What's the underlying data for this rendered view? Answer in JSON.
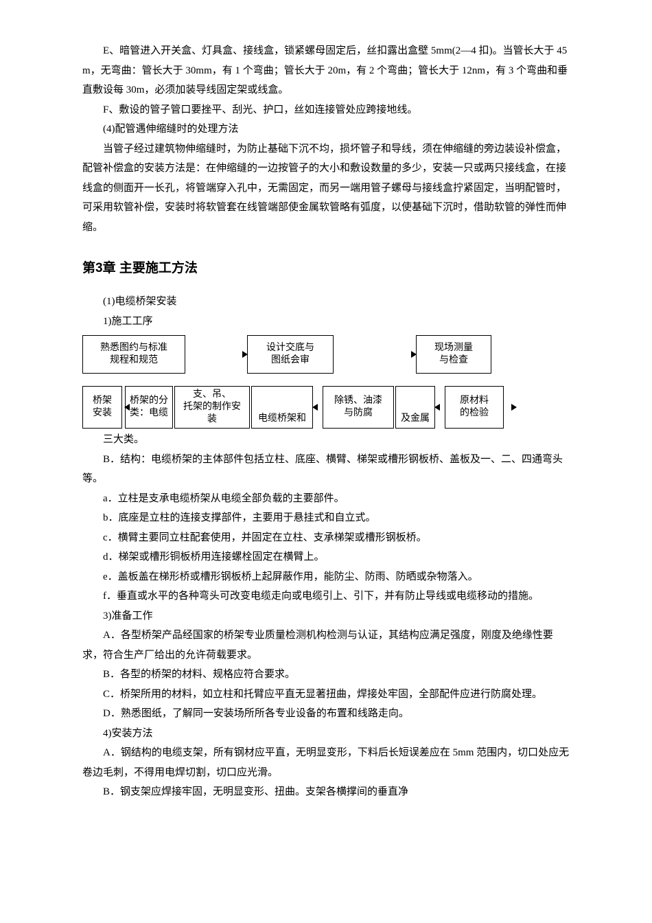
{
  "section_e": "E、暗管进入开关盒、灯具盒、接线盒，锁紧螺母固定后，丝扣露出盒壁 5mm(2―4 扣)。当管长大于 45 m，无弯曲：管长大于 30mm，有 1 个弯曲；管长大于 20m，有 2 个弯曲；管长大于 12nm，有 3 个弯曲和垂直敷设每 30m，必须加装导线固定架或线盒。",
  "section_f": "F、敷设的管子管口要挫平、刮光、护口，丝如连接管处应跨接地线。",
  "section_4_title": "(4)配管遇伸缩缝时的处理方法",
  "section_4_body": "当管子经过建筑物伸缩缝时，为防止基础下沉不均，损坏管子和导线，须在伸缩缝的旁边装设补偿盒，配管补偿盒的安装方法是：在伸缩缝的一边按管子的大小和敷设数量的多少，安装一只或两只接线盒，在接线盒的侧面开一长孔，将管端穿入孔中，无需固定，而另一端用管子螺母与接线盒拧紧固定，当明配管时，可采用软管补偿，安装时将软管套在线管端部使金属软管略有弧度，以使基础下沉时，借助软管的弹性而伸缩。",
  "chapter_heading": "第3章 主要施工方法",
  "s1_title": "(1)电缆桥架安装",
  "s1_1": "1)施工工序",
  "flow": {
    "row1": {
      "box1": "熟悉图约与标准\n规程和规范",
      "box2": "设计交底与\n图纸会审",
      "box3": "现场测量\n与检查",
      "box1_w": 150,
      "box2_w": 126,
      "box3_w": 110
    },
    "row2": {
      "box1": "桥架\n安装",
      "box2": "桥架的分\n类：电缆",
      "box3": "支、吊、\n托架的制作安\n装",
      "box4": "电缆桥架和",
      "box5": "除锈、油漆\n与防腐",
      "box6": "及金属",
      "box7": "原材料\n的检验",
      "w1": 58,
      "w2": 70,
      "w3": 110,
      "w4": 90,
      "w5": 104,
      "w6": 58,
      "w7": 86
    }
  },
  "after_flow_1": "三大类。",
  "s_B": "B．结构：电缆桥架的主体部件包括立柱、底座、横臂、梯架或槽形钢板桥、盖板及一、二、四通弯头等。",
  "s_a": "a．立柱是支承电缆桥架从电缆全部负载的主要部件。",
  "s_b": "b．底座是立柱的连接支撑部件，主要用于悬挂式和自立式。",
  "s_c": "c．横臂主要同立柱配套使用，并固定在立柱、支承梯架或槽形钢板桥。",
  "s_d": "d．梯架或槽形铜板桥用连接螺栓固定在横臂上。",
  "s_e": "e．盖板盖在梯形桥或槽形钢板桥上起屏蔽作用，能防尘、防雨、防晒或杂物落入。",
  "s_f": "f．垂直或水平的各种弯头可改变电缆走向或电缆引上、引下，并有防止导线或电缆移动的措施。",
  "s3_title": "3)准备工作",
  "s3_A": "A．各型桥架产品经国家的桥架专业质量检测机构检测与认证，其结构应满足强度，刚度及绝缘性要求，符合生产厂给出的允许荷载要求。",
  "s3_B": "B．各型的桥架的材料、规格应符合要求。",
  "s3_C": "C．桥架所用的材料，如立柱和托臂应平直无显著扭曲，焊接处牢固，全部配件应进行防腐处理。",
  "s3_D": "D．熟悉图纸，了解同一安装场所所各专业设备的布置和线路走向。",
  "s4_title": "4)安装方法",
  "s4_A": "A．钢结构的电缆支架，所有钢材应平直，无明显变形，下料后长短误差应在 5mm 范围内，切口处应无卷边毛刺，不得用电焊切割，切口应光滑。",
  "s4_B": "B．钢支架应焊接牢固，无明显变形、扭曲。支架各横撑间的垂直净"
}
